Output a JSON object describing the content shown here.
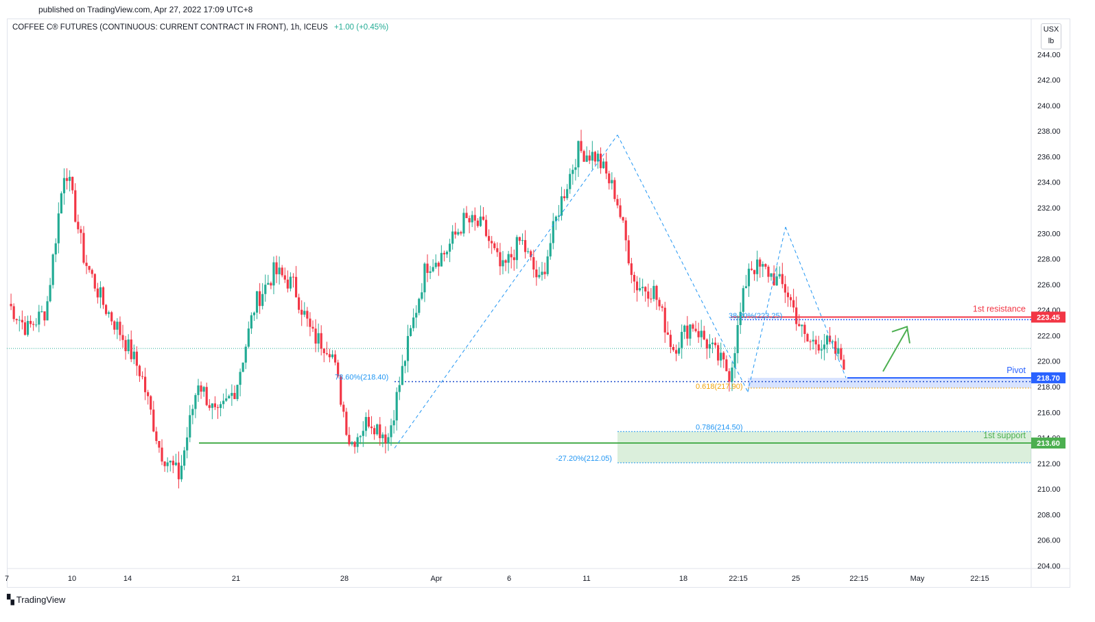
{
  "header": {
    "published": "published on TradingView.com, Apr 27, 2022 17:09 UTC+8",
    "symbol": "COFFEE C® FUTURES (CONTINUOUS: CURRENT CONTRACT IN FRONT), 1h, ICEUS",
    "change": "+1.00 (+0.45%)",
    "units_top": "USX",
    "units_bottom": "lb"
  },
  "footer": {
    "brand": "TradingView",
    "logo_icon": "tradingview-logo-icon"
  },
  "colors": {
    "up": "#22ab94",
    "down": "#f23645",
    "resistance": "#f23645",
    "pivot": "#2962ff",
    "support": "#4caf50",
    "fib": "#2196f3",
    "fib_gold": "#f0a30a"
  },
  "chart_data": {
    "type": "candlestick",
    "timeframe": "1h",
    "y_axis": {
      "range": [
        204,
        246
      ],
      "ticks": [
        "244.00",
        "242.00",
        "240.00",
        "238.00",
        "236.00",
        "234.00",
        "232.00",
        "230.00",
        "228.00",
        "226.00",
        "224.00",
        "222.00",
        "220.00",
        "218.00",
        "216.00",
        "214.00",
        "212.00",
        "210.00",
        "208.00",
        "206.00",
        "204.00"
      ]
    },
    "x_axis_ticks": [
      "7",
      "10",
      "14",
      "21",
      "28",
      "Apr",
      "6",
      "11",
      "18",
      "22:15",
      "25",
      "22:15",
      "May",
      "22:15"
    ],
    "close_series": [
      {
        "date": "Mar 7",
        "close": 224.5
      },
      {
        "date": "Mar 8",
        "close": 222.5
      },
      {
        "date": "Mar 9",
        "close": 224.0
      },
      {
        "date": "Mar 10",
        "close": 235.5
      },
      {
        "date": "Mar 11",
        "close": 228.0
      },
      {
        "date": "Mar 13",
        "close": 224.5
      },
      {
        "date": "Mar 14",
        "close": 222.0
      },
      {
        "date": "Mar 15",
        "close": 219.0
      },
      {
        "date": "Mar 16",
        "close": 213.0
      },
      {
        "date": "Mar 17",
        "close": 211.0
      },
      {
        "date": "Mar 18",
        "close": 218.5
      },
      {
        "date": "Mar 20",
        "close": 215.5
      },
      {
        "date": "Mar 21",
        "close": 218.0
      },
      {
        "date": "Mar 22",
        "close": 224.5
      },
      {
        "date": "Mar 23",
        "close": 227.0
      },
      {
        "date": "Mar 24",
        "close": 226.0
      },
      {
        "date": "Mar 25",
        "close": 222.0
      },
      {
        "date": "Mar 27",
        "close": 221.0
      },
      {
        "date": "Mar 28",
        "close": 213.5
      },
      {
        "date": "Mar 29",
        "close": 215.5
      },
      {
        "date": "Mar 30",
        "close": 214.0
      },
      {
        "date": "Mar 31",
        "close": 221.0
      },
      {
        "date": "Apr 1",
        "close": 227.5
      },
      {
        "date": "Apr 3",
        "close": 228.5
      },
      {
        "date": "Apr 4",
        "close": 231.0
      },
      {
        "date": "Apr 5",
        "close": 230.5
      },
      {
        "date": "Apr 6",
        "close": 227.0
      },
      {
        "date": "Apr 7",
        "close": 229.5
      },
      {
        "date": "Apr 8",
        "close": 226.0
      },
      {
        "date": "Apr 10",
        "close": 232.0
      },
      {
        "date": "Apr 11",
        "close": 236.5
      },
      {
        "date": "Apr 12",
        "close": 236.0
      },
      {
        "date": "Apr 13",
        "close": 233.0
      },
      {
        "date": "Apr 14",
        "close": 226.0
      },
      {
        "date": "Apr 15",
        "close": 225.5
      },
      {
        "date": "Apr 17",
        "close": 221.0
      },
      {
        "date": "Apr 18",
        "close": 223.0
      },
      {
        "date": "Apr 19",
        "close": 221.0
      },
      {
        "date": "Apr 20",
        "close": 219.0
      },
      {
        "date": "Apr 21",
        "close": 227.5
      },
      {
        "date": "Apr 22",
        "close": 227.0
      },
      {
        "date": "Apr 24",
        "close": 225.5
      },
      {
        "date": "Apr 25",
        "close": 221.5
      },
      {
        "date": "Apr 26",
        "close": 221.5
      },
      {
        "date": "Apr 27",
        "close": 220.0
      }
    ],
    "current_price": 220.0,
    "levels": [
      {
        "name": "1st resistance",
        "value": 223.45,
        "label": "223.45"
      },
      {
        "name": "Pivot",
        "value": 218.7,
        "label": "218.70"
      },
      {
        "name": "1st support",
        "value": 213.6,
        "label": "213.60"
      }
    ],
    "fib_labels": [
      {
        "text": "38.20%(223.25)",
        "value": 223.25
      },
      {
        "text": "78.60%(218.40)",
        "value": 218.4
      },
      {
        "text": "0.618(217.90)",
        "value": 217.9
      },
      {
        "text": "0.786(214.50)",
        "value": 214.5
      },
      {
        "text": "-27.20%(212.05)",
        "value": 212.05
      }
    ]
  }
}
